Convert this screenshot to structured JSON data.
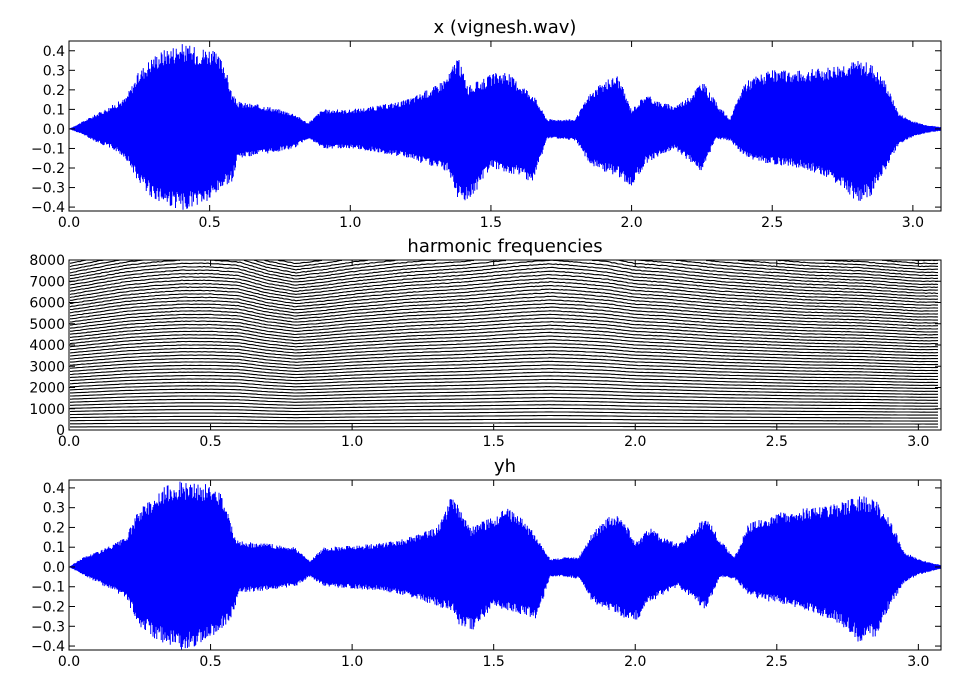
{
  "chart_data": [
    {
      "type": "line",
      "title": "x (vignesh.wav)",
      "xlabel": "",
      "ylabel": "",
      "xlim": [
        0.0,
        3.1
      ],
      "ylim": [
        -0.42,
        0.45
      ],
      "grid": false,
      "line_color": "#0000ff",
      "x_ticks": [
        "0.0",
        "0.5",
        "1.0",
        "1.5",
        "2.0",
        "2.5",
        "3.0"
      ],
      "y_ticks": [
        "−0.4",
        "−0.3",
        "−0.2",
        "−0.1",
        "0.0",
        "0.1",
        "0.2",
        "0.3",
        "0.4"
      ],
      "series": [
        {
          "x": [
            0.0,
            0.05,
            0.1,
            0.15,
            0.2,
            0.25,
            0.3,
            0.35,
            0.4,
            0.45,
            0.5,
            0.55,
            0.58,
            0.6,
            0.7,
            0.8,
            0.85,
            0.9,
            1.0,
            1.1,
            1.2,
            1.3,
            1.35,
            1.38,
            1.42,
            1.5,
            1.55,
            1.6,
            1.65,
            1.7,
            1.75,
            1.8,
            1.85,
            1.9,
            1.95,
            2.0,
            2.05,
            2.1,
            2.15,
            2.2,
            2.25,
            2.3,
            2.35,
            2.4,
            2.45,
            2.5,
            2.6,
            2.7,
            2.75,
            2.8,
            2.85,
            2.9,
            2.95,
            3.0,
            3.05,
            3.1
          ],
          "y_max": [
            0.0,
            0.04,
            0.08,
            0.12,
            0.16,
            0.3,
            0.38,
            0.42,
            0.44,
            0.42,
            0.42,
            0.35,
            0.18,
            0.14,
            0.12,
            0.08,
            0.03,
            0.1,
            0.1,
            0.12,
            0.15,
            0.22,
            0.28,
            0.38,
            0.22,
            0.28,
            0.3,
            0.24,
            0.18,
            0.05,
            0.05,
            0.05,
            0.18,
            0.24,
            0.28,
            0.1,
            0.18,
            0.14,
            0.12,
            0.16,
            0.25,
            0.14,
            0.05,
            0.24,
            0.28,
            0.3,
            0.3,
            0.32,
            0.34,
            0.35,
            0.34,
            0.25,
            0.08,
            0.04,
            0.02,
            0.01
          ],
          "y_min": [
            0.0,
            -0.03,
            -0.07,
            -0.1,
            -0.15,
            -0.28,
            -0.36,
            -0.4,
            -0.42,
            -0.4,
            -0.38,
            -0.3,
            -0.27,
            -0.15,
            -0.13,
            -0.1,
            -0.05,
            -0.1,
            -0.1,
            -0.12,
            -0.15,
            -0.2,
            -0.22,
            -0.35,
            -0.38,
            -0.2,
            -0.22,
            -0.24,
            -0.28,
            -0.05,
            -0.05,
            -0.06,
            -0.18,
            -0.22,
            -0.24,
            -0.3,
            -0.18,
            -0.14,
            -0.1,
            -0.16,
            -0.22,
            -0.05,
            -0.06,
            -0.14,
            -0.17,
            -0.18,
            -0.2,
            -0.25,
            -0.3,
            -0.38,
            -0.35,
            -0.22,
            -0.08,
            -0.04,
            -0.02,
            -0.01
          ]
        }
      ]
    },
    {
      "type": "line",
      "title": "harmonic frequencies",
      "xlabel": "",
      "ylabel": "",
      "xlim": [
        0.0,
        3.08
      ],
      "ylim": [
        0,
        8000
      ],
      "grid": false,
      "line_color": "#000000",
      "x_ticks": [
        "0.0",
        "0.5",
        "1.0",
        "1.5",
        "2.0",
        "2.5",
        "3.0"
      ],
      "y_ticks": [
        "0",
        "1000",
        "2000",
        "3000",
        "4000",
        "5000",
        "6000",
        "7000",
        "8000"
      ],
      "f0_x": [
        0.0,
        0.1,
        0.2,
        0.3,
        0.4,
        0.5,
        0.6,
        0.7,
        0.8,
        0.9,
        1.0,
        1.1,
        1.2,
        1.3,
        1.4,
        1.5,
        1.6,
        1.7,
        1.8,
        1.9,
        2.0,
        2.1,
        2.2,
        2.3,
        2.4,
        2.5,
        2.6,
        2.7,
        2.8,
        2.9,
        3.0
      ],
      "f0_y": [
        145,
        150,
        155,
        158,
        160,
        160,
        158,
        150,
        145,
        148,
        152,
        155,
        158,
        160,
        162,
        165,
        168,
        170,
        168,
        165,
        160,
        158,
        155,
        152,
        150,
        148,
        146,
        145,
        144,
        142,
        140
      ]
    },
    {
      "type": "line",
      "title": "yh",
      "xlabel": "",
      "ylabel": "",
      "xlim": [
        0.0,
        3.08
      ],
      "ylim": [
        -0.42,
        0.44
      ],
      "grid": false,
      "line_color": "#0000ff",
      "x_ticks": [
        "0.0",
        "0.5",
        "1.0",
        "1.5",
        "2.0",
        "2.5",
        "3.0"
      ],
      "y_ticks": [
        "−0.4",
        "−0.3",
        "−0.2",
        "−0.1",
        "0.0",
        "0.1",
        "0.2",
        "0.3",
        "0.4"
      ],
      "series": [
        {
          "x": [
            0.0,
            0.05,
            0.1,
            0.15,
            0.2,
            0.25,
            0.3,
            0.35,
            0.4,
            0.45,
            0.5,
            0.55,
            0.58,
            0.6,
            0.7,
            0.8,
            0.85,
            0.9,
            1.0,
            1.1,
            1.2,
            1.3,
            1.35,
            1.38,
            1.42,
            1.5,
            1.55,
            1.6,
            1.65,
            1.7,
            1.75,
            1.8,
            1.85,
            1.9,
            1.95,
            2.0,
            2.05,
            2.1,
            2.15,
            2.2,
            2.25,
            2.3,
            2.35,
            2.4,
            2.45,
            2.5,
            2.6,
            2.7,
            2.75,
            2.8,
            2.85,
            2.9,
            2.95,
            3.0,
            3.05,
            3.08
          ],
          "y_max": [
            0.0,
            0.05,
            0.08,
            0.11,
            0.15,
            0.3,
            0.36,
            0.42,
            0.44,
            0.42,
            0.42,
            0.36,
            0.18,
            0.13,
            0.12,
            0.1,
            0.03,
            0.1,
            0.11,
            0.12,
            0.15,
            0.2,
            0.36,
            0.3,
            0.2,
            0.26,
            0.3,
            0.25,
            0.16,
            0.04,
            0.05,
            0.05,
            0.18,
            0.25,
            0.28,
            0.12,
            0.2,
            0.15,
            0.12,
            0.18,
            0.26,
            0.14,
            0.05,
            0.22,
            0.25,
            0.28,
            0.3,
            0.32,
            0.34,
            0.36,
            0.34,
            0.24,
            0.08,
            0.04,
            0.02,
            0.01
          ],
          "y_min": [
            0.0,
            -0.04,
            -0.08,
            -0.12,
            -0.16,
            -0.3,
            -0.36,
            -0.4,
            -0.42,
            -0.4,
            -0.36,
            -0.3,
            -0.24,
            -0.13,
            -0.12,
            -0.1,
            -0.05,
            -0.1,
            -0.11,
            -0.12,
            -0.15,
            -0.2,
            -0.22,
            -0.3,
            -0.33,
            -0.2,
            -0.22,
            -0.24,
            -0.27,
            -0.05,
            -0.05,
            -0.06,
            -0.18,
            -0.22,
            -0.25,
            -0.28,
            -0.18,
            -0.14,
            -0.1,
            -0.16,
            -0.22,
            -0.05,
            -0.06,
            -0.14,
            -0.17,
            -0.18,
            -0.22,
            -0.27,
            -0.32,
            -0.4,
            -0.35,
            -0.2,
            -0.08,
            -0.04,
            -0.02,
            -0.01
          ]
        }
      ]
    }
  ]
}
